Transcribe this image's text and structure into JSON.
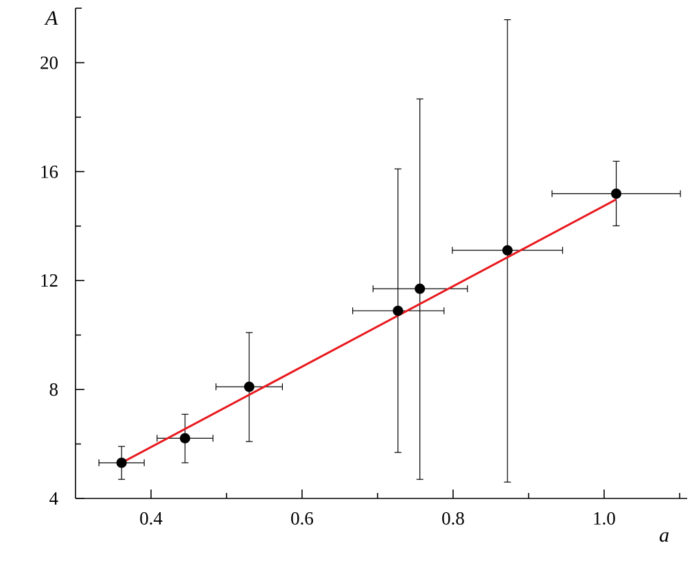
{
  "chart_data": {
    "type": "scatter",
    "title": "",
    "xlabel": "a",
    "ylabel": "A",
    "xlim": [
      0.3,
      1.11
    ],
    "ylim": [
      4,
      22
    ],
    "grid": false,
    "x_ticks": [
      0.4,
      0.6,
      0.8,
      1.0
    ],
    "x_tick_labels": [
      "0.4",
      "0.6",
      "0.8",
      "1.0"
    ],
    "x_minor_ticks": [
      0.5,
      0.7,
      0.9,
      1.1
    ],
    "y_ticks": [
      4,
      8,
      12,
      16,
      20
    ],
    "y_tick_labels": [
      "4",
      "8",
      "12",
      "16",
      "20"
    ],
    "y_minor_ticks": [
      6,
      10,
      14,
      18
    ],
    "points": [
      {
        "x": 0.361,
        "y": 5.31,
        "xerr": [
          0.331,
          0.391
        ],
        "yerr": [
          4.7,
          5.91
        ]
      },
      {
        "x": 0.445,
        "y": 6.21,
        "xerr": [
          0.408,
          0.482
        ],
        "yerr": [
          5.31,
          7.09
        ]
      },
      {
        "x": 0.53,
        "y": 8.1,
        "xerr": [
          0.486,
          0.574
        ],
        "yerr": [
          6.09,
          10.09
        ]
      },
      {
        "x": 0.727,
        "y": 10.89,
        "xerr": [
          0.667,
          0.788
        ],
        "yerr": [
          5.69,
          16.1
        ]
      },
      {
        "x": 0.756,
        "y": 11.7,
        "xerr": [
          0.694,
          0.819
        ],
        "yerr": [
          4.7,
          18.67
        ]
      },
      {
        "x": 0.872,
        "y": 13.11,
        "xerr": [
          0.799,
          0.945
        ],
        "yerr": [
          4.6,
          21.58
        ]
      },
      {
        "x": 1.016,
        "y": 15.19,
        "xerr": [
          0.931,
          1.101
        ],
        "yerr": [
          14.01,
          16.38
        ]
      }
    ],
    "fit_line": {
      "x": [
        0.361,
        1.016
      ],
      "y": [
        5.31,
        14.98
      ],
      "color": "#e8191e"
    },
    "point_color": "#000000"
  }
}
